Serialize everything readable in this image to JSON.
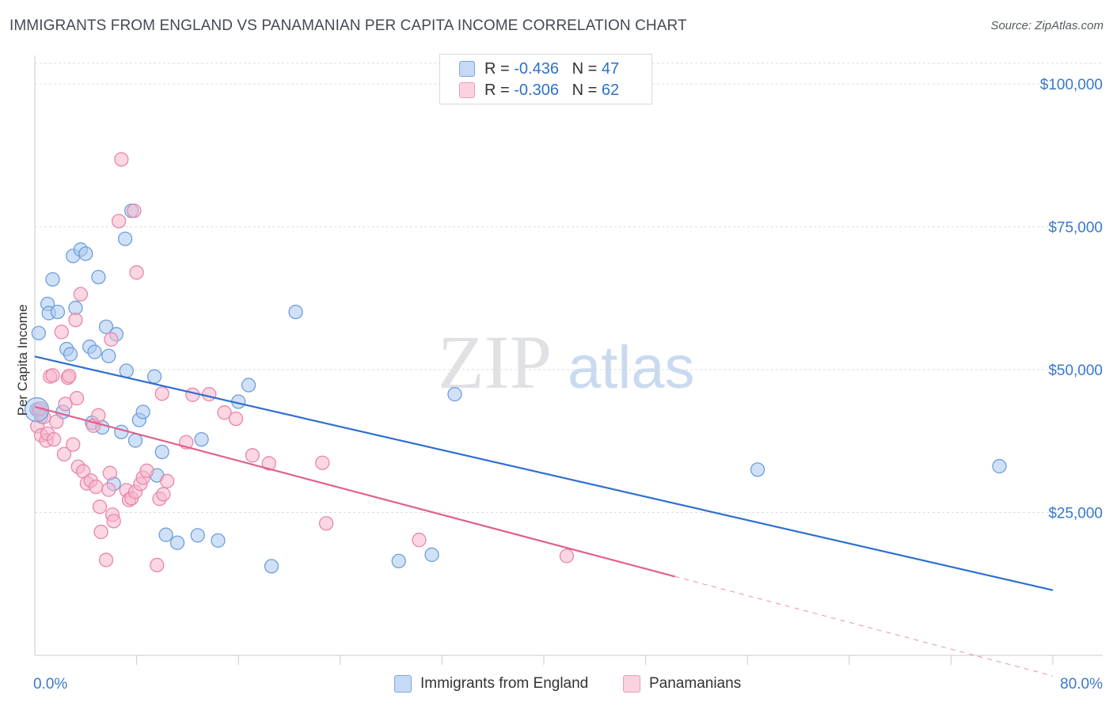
{
  "title": "IMMIGRANTS FROM ENGLAND VS PANAMANIAN PER CAPITA INCOME CORRELATION CHART",
  "source": "Source: ZipAtlas.com",
  "watermark": {
    "zip": "ZIP",
    "atlas": "atlas"
  },
  "legend_top": [
    {
      "r_label": "R = ",
      "r_value": "-0.436",
      "n_label": "N = ",
      "n_value": "47"
    },
    {
      "r_label": "R = ",
      "r_value": "-0.306",
      "n_label": "N = ",
      "n_value": "62"
    }
  ],
  "legend_bottom": [
    {
      "label": "Immigrants from England"
    },
    {
      "label": "Panamanians"
    }
  ],
  "colors": {
    "blue_fill": "#a9c8f0",
    "blue_stroke": "#6d9fdc",
    "blue_line": "#2f6fcf",
    "pink_fill": "#f6b7cc",
    "pink_stroke": "#ea86a8",
    "pink_line": "#e0608e",
    "tick_label": "#3a78cc",
    "grid": "#d9dde3"
  },
  "chart_data": {
    "type": "scatter",
    "title": "IMMIGRANTS FROM ENGLAND VS PANAMANIAN PER CAPITA INCOME CORRELATION CHART",
    "xlabel": "",
    "ylabel": "Per Capita Income",
    "xlim": [
      0,
      80
    ],
    "ylim": [
      0,
      105000
    ],
    "x_tick_labels": [
      "0.0%",
      "80.0%"
    ],
    "y_ticks": [
      25000,
      50000,
      75000,
      100000
    ],
    "y_tick_labels": [
      "$25,000",
      "$50,000",
      "$75,000",
      "$100,000"
    ],
    "grid": true,
    "legend_position": "top-center",
    "series": [
      {
        "name": "Immigrants from England",
        "color": "#a9c8f0",
        "trend": {
          "x": [
            0,
            80
          ],
          "y": [
            52300,
            11400
          ],
          "dashed_from": null
        },
        "points": [
          [
            0.15,
            43000
          ],
          [
            0.3,
            56400
          ],
          [
            0.5,
            41800
          ],
          [
            1.0,
            61500
          ],
          [
            1.1,
            59900
          ],
          [
            1.4,
            65800
          ],
          [
            1.8,
            60100
          ],
          [
            2.2,
            42600
          ],
          [
            2.5,
            53600
          ],
          [
            2.8,
            52700
          ],
          [
            3.0,
            69900
          ],
          [
            3.2,
            60800
          ],
          [
            3.6,
            71000
          ],
          [
            4.0,
            70300
          ],
          [
            4.3,
            54000
          ],
          [
            4.5,
            40700
          ],
          [
            4.7,
            53100
          ],
          [
            5.0,
            66200
          ],
          [
            5.3,
            39900
          ],
          [
            5.6,
            57500
          ],
          [
            5.8,
            52400
          ],
          [
            6.2,
            30000
          ],
          [
            6.4,
            56200
          ],
          [
            6.8,
            39100
          ],
          [
            7.1,
            72900
          ],
          [
            7.2,
            49800
          ],
          [
            7.6,
            77800
          ],
          [
            7.9,
            37600
          ],
          [
            8.2,
            41200
          ],
          [
            8.5,
            42600
          ],
          [
            9.4,
            48800
          ],
          [
            9.6,
            31500
          ],
          [
            10.0,
            35600
          ],
          [
            10.3,
            21100
          ],
          [
            11.2,
            19700
          ],
          [
            12.8,
            21000
          ],
          [
            13.1,
            37800
          ],
          [
            14.4,
            20100
          ],
          [
            16.0,
            44400
          ],
          [
            16.8,
            47300
          ],
          [
            18.6,
            15600
          ],
          [
            20.5,
            60100
          ],
          [
            28.6,
            16500
          ],
          [
            31.2,
            17600
          ],
          [
            33.0,
            45700
          ],
          [
            56.8,
            32500
          ],
          [
            75.8,
            33100
          ]
        ]
      },
      {
        "name": "Panamanians",
        "color": "#f6b7cc",
        "trend": {
          "x": [
            0,
            50.3,
            80
          ],
          "y": [
            43500,
            13800,
            -3600
          ],
          "dashed_from": 50.3
        },
        "points": [
          [
            0.2,
            40100
          ],
          [
            0.3,
            42900
          ],
          [
            0.5,
            38500
          ],
          [
            0.7,
            41700
          ],
          [
            0.9,
            37600
          ],
          [
            1.0,
            38800
          ],
          [
            1.2,
            48800
          ],
          [
            1.4,
            49000
          ],
          [
            1.5,
            37800
          ],
          [
            1.7,
            40900
          ],
          [
            2.1,
            56600
          ],
          [
            2.3,
            35200
          ],
          [
            2.4,
            44000
          ],
          [
            2.6,
            48600
          ],
          [
            2.7,
            48900
          ],
          [
            3.0,
            36900
          ],
          [
            3.2,
            58700
          ],
          [
            3.3,
            45000
          ],
          [
            3.4,
            33000
          ],
          [
            3.6,
            63200
          ],
          [
            3.8,
            32200
          ],
          [
            4.1,
            30100
          ],
          [
            4.4,
            30600
          ],
          [
            4.6,
            40200
          ],
          [
            4.8,
            29500
          ],
          [
            5.0,
            42000
          ],
          [
            5.1,
            26000
          ],
          [
            5.2,
            21600
          ],
          [
            5.6,
            16700
          ],
          [
            5.8,
            29000
          ],
          [
            5.9,
            31900
          ],
          [
            6.0,
            55300
          ],
          [
            6.1,
            24600
          ],
          [
            6.2,
            23500
          ],
          [
            6.6,
            76000
          ],
          [
            6.8,
            86800
          ],
          [
            7.2,
            28900
          ],
          [
            7.4,
            27200
          ],
          [
            7.6,
            27500
          ],
          [
            7.8,
            77800
          ],
          [
            7.9,
            28600
          ],
          [
            8.0,
            67000
          ],
          [
            8.3,
            30000
          ],
          [
            8.5,
            31100
          ],
          [
            8.8,
            32300
          ],
          [
            9.6,
            15800
          ],
          [
            9.8,
            27400
          ],
          [
            10.0,
            45800
          ],
          [
            10.1,
            28200
          ],
          [
            10.4,
            30500
          ],
          [
            11.9,
            37300
          ],
          [
            12.4,
            45600
          ],
          [
            13.7,
            45700
          ],
          [
            14.9,
            42500
          ],
          [
            15.8,
            41400
          ],
          [
            17.1,
            35000
          ],
          [
            18.4,
            33600
          ],
          [
            22.6,
            33700
          ],
          [
            22.9,
            23100
          ],
          [
            30.2,
            20200
          ],
          [
            41.8,
            17400
          ],
          [
            0.4,
            43200
          ]
        ]
      }
    ]
  }
}
